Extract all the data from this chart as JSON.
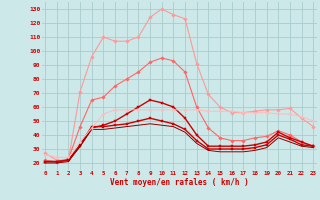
{
  "x": [
    0,
    1,
    2,
    3,
    4,
    5,
    6,
    7,
    8,
    9,
    10,
    11,
    12,
    13,
    14,
    15,
    16,
    17,
    18,
    19,
    20,
    21,
    22,
    23
  ],
  "series": [
    {
      "name": "rafales_max",
      "color": "#ff9999",
      "lw": 0.8,
      "marker": "D",
      "ms": 1.8,
      "values": [
        27,
        22,
        22,
        71,
        96,
        110,
        107,
        107,
        110,
        124,
        130,
        126,
        123,
        91,
        69,
        60,
        56,
        56,
        57,
        58,
        58,
        59,
        52,
        46
      ]
    },
    {
      "name": "rafales_med",
      "color": "#ff6666",
      "lw": 0.8,
      "marker": "D",
      "ms": 1.8,
      "values": [
        22,
        21,
        23,
        46,
        65,
        67,
        75,
        80,
        85,
        92,
        95,
        93,
        85,
        60,
        45,
        38,
        36,
        36,
        38,
        39,
        43,
        40,
        35,
        32
      ]
    },
    {
      "name": "vent_max",
      "color": "#cc0000",
      "lw": 1.0,
      "marker": "s",
      "ms": 1.8,
      "values": [
        21,
        21,
        22,
        32,
        45,
        47,
        50,
        55,
        60,
        65,
        63,
        60,
        52,
        40,
        32,
        32,
        32,
        32,
        33,
        35,
        42,
        38,
        35,
        32
      ]
    },
    {
      "name": "vent_med",
      "color": "#cc0000",
      "lw": 1.0,
      "marker": "s",
      "ms": 1.8,
      "values": [
        21,
        21,
        22,
        33,
        46,
        46,
        47,
        48,
        50,
        52,
        50,
        48,
        44,
        36,
        30,
        30,
        30,
        30,
        31,
        33,
        40,
        37,
        33,
        32
      ]
    },
    {
      "name": "vent_min",
      "color": "#880000",
      "lw": 0.7,
      "marker": null,
      "ms": 0,
      "values": [
        20,
        20,
        21,
        32,
        44,
        44,
        45,
        46,
        47,
        48,
        47,
        46,
        42,
        34,
        29,
        28,
        28,
        28,
        29,
        31,
        38,
        35,
        32,
        31
      ]
    },
    {
      "name": "rafales_flat",
      "color": "#ffbbbb",
      "lw": 0.7,
      "marker": "D",
      "ms": 1.4,
      "values": [
        26,
        24,
        24,
        35,
        45,
        55,
        58,
        58,
        58,
        58,
        58,
        58,
        58,
        58,
        57,
        57,
        57,
        56,
        56,
        56,
        55,
        55,
        53,
        50
      ]
    }
  ],
  "xlim": [
    -0.3,
    23.3
  ],
  "ylim": [
    15,
    135
  ],
  "yticks": [
    20,
    30,
    40,
    50,
    60,
    70,
    80,
    90,
    100,
    110,
    120,
    130
  ],
  "xticks": [
    0,
    1,
    2,
    3,
    4,
    5,
    6,
    7,
    8,
    9,
    10,
    11,
    12,
    13,
    14,
    15,
    16,
    17,
    18,
    19,
    20,
    21,
    22,
    23
  ],
  "xlabel": "Vent moyen/en rafales ( km/h )",
  "bg_color": "#cce8e8",
  "grid_color": "#aacccc",
  "label_color": "#cc0000",
  "tick_color": "#cc0000"
}
